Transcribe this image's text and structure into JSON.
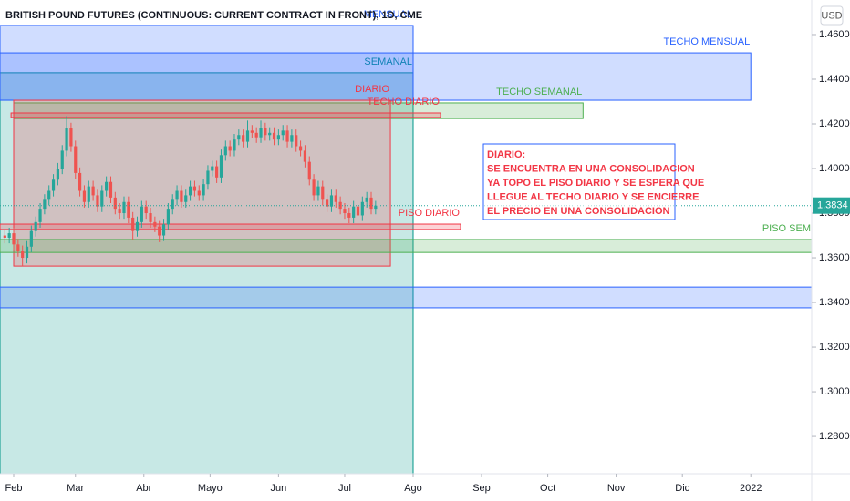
{
  "chart_data": {
    "type": "candlestick",
    "title": "BRITISH POUND FUTURES (CONTINUOUS: CURRENT CONTRACT IN FRONT), 1D, CME",
    "currency": "USD",
    "xlim": [
      -6.2,
      361.6
    ],
    "ylim": [
      1.2633,
      1.4755
    ],
    "xticks": [
      {
        "value": 0,
        "label": "Feb"
      },
      {
        "value": 28,
        "label": "Mar"
      },
      {
        "value": 59,
        "label": "Abr"
      },
      {
        "value": 89,
        "label": "Mayo"
      },
      {
        "value": 120,
        "label": "Jun"
      },
      {
        "value": 150,
        "label": "Jul"
      },
      {
        "value": 181,
        "label": "Ago"
      },
      {
        "value": 212,
        "label": "Sep"
      },
      {
        "value": 242,
        "label": "Oct"
      },
      {
        "value": 273,
        "label": "Nov"
      },
      {
        "value": 303,
        "label": "Dic"
      },
      {
        "value": 334,
        "label": "2022"
      }
    ],
    "yticks": [
      {
        "value": 1.46,
        "label": "1.4600"
      },
      {
        "value": 1.44,
        "label": "1.4400"
      },
      {
        "value": 1.42,
        "label": "1.4200"
      },
      {
        "value": 1.4,
        "label": "1.4000"
      },
      {
        "value": 1.38,
        "label": "1.3800"
      },
      {
        "value": 1.36,
        "label": "1.3600"
      },
      {
        "value": 1.34,
        "label": "1.3400"
      },
      {
        "value": 1.32,
        "label": "1.3200"
      },
      {
        "value": 1.3,
        "label": "1.3000"
      },
      {
        "value": 1.28,
        "label": "1.2800"
      }
    ],
    "up_color": "#26a69a",
    "down_color": "#ef5350",
    "x": [
      -4,
      -2,
      0,
      2,
      4,
      6,
      8,
      10,
      12,
      14,
      16,
      18,
      20,
      22,
      24,
      26,
      28,
      30,
      32,
      34,
      36,
      38,
      40,
      42,
      44,
      46,
      48,
      50,
      52,
      54,
      56,
      58,
      60,
      62,
      64,
      66,
      68,
      70,
      72,
      74,
      76,
      78,
      80,
      82,
      84,
      86,
      88,
      90,
      92,
      94,
      96,
      98,
      100,
      102,
      104,
      106,
      108,
      110,
      112,
      114,
      116,
      118,
      120,
      122,
      124,
      126,
      128,
      130,
      132,
      134,
      136,
      138,
      140,
      142,
      144,
      146,
      148,
      150,
      152,
      154,
      156,
      158,
      160,
      162,
      164
    ],
    "candles": [
      [
        1.37,
        1.3725,
        1.3665,
        1.369
      ],
      [
        1.369,
        1.3735,
        1.3665,
        1.371
      ],
      [
        1.371,
        1.3735,
        1.3635,
        1.366
      ],
      [
        1.366,
        1.3685,
        1.3605,
        1.363
      ],
      [
        1.363,
        1.3655,
        1.3565,
        1.36
      ],
      [
        1.36,
        1.3675,
        1.3575,
        1.365
      ],
      [
        1.365,
        1.3745,
        1.3625,
        1.372
      ],
      [
        1.372,
        1.3785,
        1.3695,
        1.376
      ],
      [
        1.376,
        1.3845,
        1.3735,
        1.382
      ],
      [
        1.382,
        1.3885,
        1.3795,
        1.386
      ],
      [
        1.386,
        1.3925,
        1.3835,
        1.39
      ],
      [
        1.39,
        1.3975,
        1.3875,
        1.395
      ],
      [
        1.395,
        1.4025,
        1.3925,
        1.4
      ],
      [
        1.4,
        1.4105,
        1.3975,
        1.408
      ],
      [
        1.408,
        1.4235,
        1.4055,
        1.418
      ],
      [
        1.418,
        1.4205,
        1.4075,
        1.41
      ],
      [
        1.41,
        1.4125,
        1.3955,
        1.398
      ],
      [
        1.398,
        1.4005,
        1.3875,
        1.39
      ],
      [
        1.39,
        1.3925,
        1.3825,
        1.385
      ],
      [
        1.385,
        1.3945,
        1.3825,
        1.392
      ],
      [
        1.392,
        1.3945,
        1.3855,
        1.388
      ],
      [
        1.388,
        1.3905,
        1.3805,
        1.383
      ],
      [
        1.383,
        1.3925,
        1.3805,
        1.39
      ],
      [
        1.39,
        1.3965,
        1.3875,
        1.394
      ],
      [
        1.394,
        1.3965,
        1.3845,
        1.387
      ],
      [
        1.387,
        1.3895,
        1.3795,
        1.382
      ],
      [
        1.382,
        1.3845,
        1.3775,
        1.38
      ],
      [
        1.38,
        1.3875,
        1.3775,
        1.385
      ],
      [
        1.385,
        1.3875,
        1.3755,
        1.378
      ],
      [
        1.378,
        1.3805,
        1.368,
        1.372
      ],
      [
        1.372,
        1.3785,
        1.3695,
        1.376
      ],
      [
        1.376,
        1.3855,
        1.3735,
        1.383
      ],
      [
        1.383,
        1.3855,
        1.3775,
        1.38
      ],
      [
        1.38,
        1.3825,
        1.3735,
        1.376
      ],
      [
        1.376,
        1.3785,
        1.3715,
        1.374
      ],
      [
        1.374,
        1.3765,
        1.367,
        1.37
      ],
      [
        1.37,
        1.3775,
        1.3675,
        1.375
      ],
      [
        1.375,
        1.3845,
        1.3725,
        1.382
      ],
      [
        1.382,
        1.3885,
        1.3795,
        1.386
      ],
      [
        1.386,
        1.3925,
        1.3835,
        1.39
      ],
      [
        1.39,
        1.3925,
        1.3825,
        1.385
      ],
      [
        1.385,
        1.3905,
        1.3825,
        1.388
      ],
      [
        1.388,
        1.3945,
        1.3855,
        1.392
      ],
      [
        1.392,
        1.3945,
        1.3875,
        1.39
      ],
      [
        1.39,
        1.3925,
        1.3855,
        1.388
      ],
      [
        1.388,
        1.3955,
        1.3855,
        1.393
      ],
      [
        1.393,
        1.4015,
        1.3905,
        1.399
      ],
      [
        1.399,
        1.4035,
        1.3965,
        1.401
      ],
      [
        1.401,
        1.4035,
        1.3935,
        1.396
      ],
      [
        1.396,
        1.4085,
        1.3935,
        1.406
      ],
      [
        1.406,
        1.4125,
        1.4035,
        1.41
      ],
      [
        1.41,
        1.4125,
        1.4055,
        1.408
      ],
      [
        1.408,
        1.4155,
        1.4055,
        1.413
      ],
      [
        1.413,
        1.4175,
        1.4105,
        1.415
      ],
      [
        1.415,
        1.4175,
        1.4095,
        1.412
      ],
      [
        1.412,
        1.4215,
        1.4095,
        1.417
      ],
      [
        1.417,
        1.4195,
        1.4135,
        1.416
      ],
      [
        1.416,
        1.4185,
        1.4115,
        1.414
      ],
      [
        1.414,
        1.4215,
        1.4115,
        1.418
      ],
      [
        1.418,
        1.4205,
        1.4125,
        1.415
      ],
      [
        1.415,
        1.4185,
        1.4125,
        1.416
      ],
      [
        1.416,
        1.4185,
        1.4105,
        1.413
      ],
      [
        1.413,
        1.4175,
        1.4105,
        1.415
      ],
      [
        1.415,
        1.4195,
        1.4125,
        1.417
      ],
      [
        1.417,
        1.4195,
        1.4095,
        1.412
      ],
      [
        1.412,
        1.4175,
        1.4095,
        1.415
      ],
      [
        1.415,
        1.4175,
        1.4075,
        1.41
      ],
      [
        1.41,
        1.4125,
        1.4055,
        1.408
      ],
      [
        1.408,
        1.4105,
        1.4005,
        1.403
      ],
      [
        1.403,
        1.4055,
        1.3925,
        1.395
      ],
      [
        1.395,
        1.3975,
        1.3855,
        1.388
      ],
      [
        1.388,
        1.3945,
        1.3855,
        1.392
      ],
      [
        1.392,
        1.3945,
        1.3835,
        1.386
      ],
      [
        1.386,
        1.3885,
        1.3805,
        1.383
      ],
      [
        1.383,
        1.3905,
        1.3805,
        1.388
      ],
      [
        1.388,
        1.3905,
        1.3825,
        1.385
      ],
      [
        1.385,
        1.3875,
        1.3795,
        1.382
      ],
      [
        1.382,
        1.3845,
        1.3775,
        1.38
      ],
      [
        1.38,
        1.3825,
        1.3755,
        1.378
      ],
      [
        1.378,
        1.3855,
        1.3755,
        1.383
      ],
      [
        1.383,
        1.3855,
        1.3765,
        1.379
      ],
      [
        1.379,
        1.3875,
        1.3765,
        1.385
      ],
      [
        1.385,
        1.3895,
        1.3825,
        1.387
      ],
      [
        1.387,
        1.3895,
        1.3795,
        1.382
      ],
      [
        1.382,
        1.3855,
        1.3795,
        1.3834
      ]
    ],
    "zones": [
      {
        "x": [
          -6.2,
          181
        ],
        "y": [
          1.2633,
          1.4429
        ],
        "color": "#009688",
        "label": "SEMANAL"
      },
      {
        "x": [
          -6.2,
          181
        ],
        "y": [
          1.4306,
          1.4641
        ],
        "color": "#2962ff",
        "label": "MENSUAL"
      },
      {
        "x": [
          -6.2,
          334
        ],
        "y": [
          1.4306,
          1.4518
        ],
        "color": "#2962ff",
        "label": "TECHO MENSUAL"
      },
      {
        "x": [
          0,
          258
        ],
        "y": [
          1.4224,
          1.4294
        ],
        "color": "#4caf50",
        "label": "TECHO SEMANAL"
      },
      {
        "x": [
          0,
          170.7
        ],
        "y": [
          1.3563,
          1.4306
        ],
        "color": "#f23645",
        "label": "DIARIO"
      },
      {
        "x": [
          -1.2,
          193.4
        ],
        "y": [
          1.4229,
          1.4249
        ],
        "color": "#f23645",
        "label": "TECHO DIARIO"
      },
      {
        "x": [
          -6.2,
          202.5
        ],
        "y": [
          1.3727,
          1.3751
        ],
        "color": "#f23645",
        "label": "PISO DIARIO"
      },
      {
        "x": [
          -6.2,
          361.6
        ],
        "y": [
          1.3624,
          1.3682
        ],
        "color": "#4caf50",
        "label": "PISO SEM"
      },
      {
        "x": [
          -6.2,
          361.6
        ],
        "y": [
          1.3376,
          1.3469
        ],
        "color": "#2962ff"
      }
    ],
    "note": [
      "DIARIO:",
      "SE ENCUENTRA EN UNA CONSOLIDACION",
      "YA TOPO EL PISO DIARIO Y SE ESPERA QUE",
      "LLEGUE AL TECHO DIARIO Y SE ENCIERRE",
      "EL PRECIO EN UNA CONSOLIDACION"
    ]
  }
}
